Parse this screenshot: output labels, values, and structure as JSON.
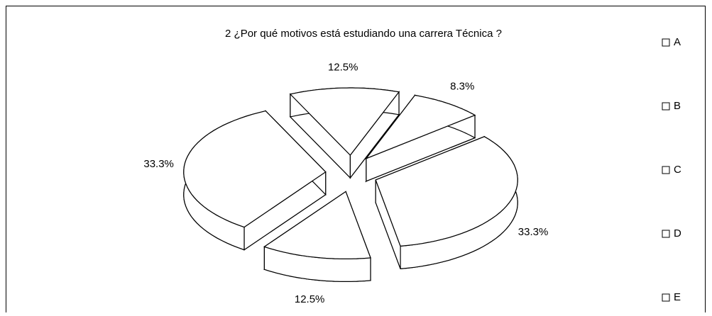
{
  "chart_data": {
    "type": "pie",
    "title": "2 ¿Por qué motivos está estudiando una carrera Técnica ?",
    "categories": [
      "A",
      "B",
      "C",
      "D",
      "E"
    ],
    "values": [
      12.5,
      8.3,
      33.3,
      12.5,
      33.3
    ],
    "value_labels": [
      "12.5%",
      "8.3%",
      "33.3%",
      "12.5%",
      "33.3%"
    ],
    "color": "#ffffff",
    "legend": "right"
  }
}
